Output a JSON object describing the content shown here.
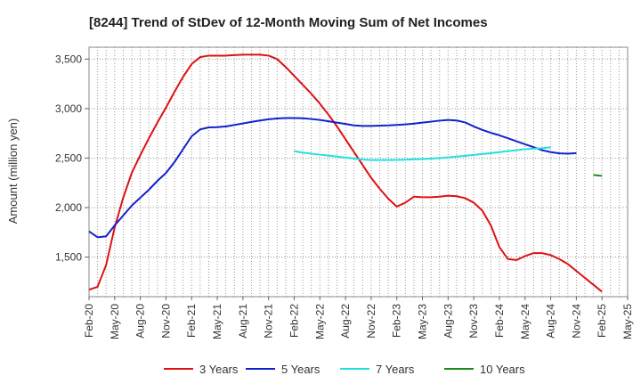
{
  "chart_data": {
    "type": "line",
    "title": "[8244]  Trend of StDev of 12-Month Moving Sum of Net Incomes",
    "ylabel": "Amount (million yen)",
    "xlabel": "",
    "ylim": [
      1100,
      3620
    ],
    "y_ticks": [
      {
        "value": 1500,
        "label": "1,500"
      },
      {
        "value": 2000,
        "label": "2,000"
      },
      {
        "value": 2500,
        "label": "2,500"
      },
      {
        "value": 3000,
        "label": "3,000"
      },
      {
        "value": 3500,
        "label": "3,500"
      }
    ],
    "x_tick_labels": [
      "Feb-20",
      "May-20",
      "Aug-20",
      "Nov-20",
      "Feb-21",
      "May-21",
      "Aug-21",
      "Nov-21",
      "Feb-22",
      "May-22",
      "Aug-22",
      "Nov-22",
      "Feb-23",
      "May-23",
      "Aug-23",
      "Nov-23",
      "Feb-24",
      "May-24",
      "Aug-24",
      "Nov-24",
      "Feb-25",
      "May-25"
    ],
    "x_start": "Feb-20",
    "grid": true,
    "legend_position": "bottom",
    "series": [
      {
        "name": "3 Years",
        "color": "#dd1111",
        "start": "Feb-20",
        "values": [
          1170,
          1200,
          1420,
          1800,
          2100,
          2350,
          2530,
          2700,
          2860,
          3010,
          3170,
          3320,
          3450,
          3520,
          3535,
          3535,
          3535,
          3540,
          3545,
          3545,
          3545,
          3535,
          3500,
          3420,
          3330,
          3240,
          3150,
          3050,
          2940,
          2820,
          2690,
          2560,
          2430,
          2300,
          2190,
          2090,
          2010,
          2050,
          2110,
          2105,
          2105,
          2110,
          2120,
          2115,
          2095,
          2050,
          1970,
          1820,
          1600,
          1480,
          1470,
          1510,
          1540,
          1540,
          1520,
          1480,
          1430,
          1360,
          1290,
          1220,
          1150
        ]
      },
      {
        "name": "5 Years",
        "color": "#1122cc",
        "start": "Feb-20",
        "values": [
          1760,
          1700,
          1710,
          1820,
          1920,
          2020,
          2100,
          2180,
          2270,
          2350,
          2460,
          2590,
          2720,
          2790,
          2810,
          2812,
          2820,
          2835,
          2850,
          2865,
          2880,
          2892,
          2900,
          2905,
          2905,
          2902,
          2895,
          2885,
          2872,
          2858,
          2845,
          2830,
          2825,
          2825,
          2828,
          2830,
          2835,
          2840,
          2848,
          2858,
          2868,
          2878,
          2885,
          2880,
          2860,
          2820,
          2785,
          2755,
          2730,
          2700,
          2670,
          2640,
          2610,
          2580,
          2560,
          2548,
          2545,
          2550
        ]
      },
      {
        "name": "7 Years",
        "color": "#22e0e0",
        "start": "Feb-22",
        "values": [
          2570,
          2555,
          2545,
          2535,
          2525,
          2515,
          2505,
          2495,
          2485,
          2480,
          2480,
          2480,
          2482,
          2484,
          2487,
          2490,
          2495,
          2500,
          2507,
          2515,
          2523,
          2532,
          2541,
          2550,
          2560,
          2570,
          2580,
          2590,
          2595,
          2600,
          2610
        ]
      },
      {
        "name": "10 Years",
        "color": "#1a8a1a",
        "start": "Jan-25",
        "values": [
          2330,
          2320
        ]
      }
    ]
  }
}
